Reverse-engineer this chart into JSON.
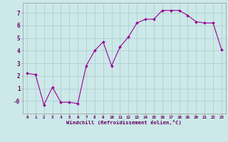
{
  "x": [
    0,
    1,
    2,
    3,
    4,
    5,
    6,
    7,
    8,
    9,
    10,
    11,
    12,
    13,
    14,
    15,
    16,
    17,
    18,
    19,
    20,
    21,
    22,
    23
  ],
  "y": [
    2.2,
    2.1,
    -0.3,
    1.1,
    -0.1,
    -0.1,
    -0.2,
    2.8,
    4.0,
    4.7,
    2.8,
    4.3,
    5.1,
    6.2,
    6.5,
    6.5,
    7.2,
    7.2,
    7.2,
    6.8,
    6.3,
    6.2,
    6.2,
    4.1
  ],
  "line_color": "#990099",
  "marker_color": "#990099",
  "bg_color": "#cce8e8",
  "grid_color": "#aacccc",
  "xlabel": "Windchill (Refroidissement éolien,°C)",
  "xlabel_color": "#660066",
  "tick_color": "#660066",
  "ylim": [
    -1.0,
    7.8
  ],
  "xlim": [
    -0.5,
    23.5
  ],
  "yticks": [
    0,
    1,
    2,
    3,
    4,
    5,
    6,
    7
  ],
  "ytick_labels": [
    "-0",
    "1",
    "2",
    "3",
    "4",
    "5",
    "6",
    "7"
  ],
  "xticks": [
    0,
    1,
    2,
    3,
    4,
    5,
    6,
    7,
    8,
    9,
    10,
    11,
    12,
    13,
    14,
    15,
    16,
    17,
    18,
    19,
    20,
    21,
    22,
    23
  ],
  "figsize": [
    3.2,
    2.0
  ],
  "dpi": 100
}
